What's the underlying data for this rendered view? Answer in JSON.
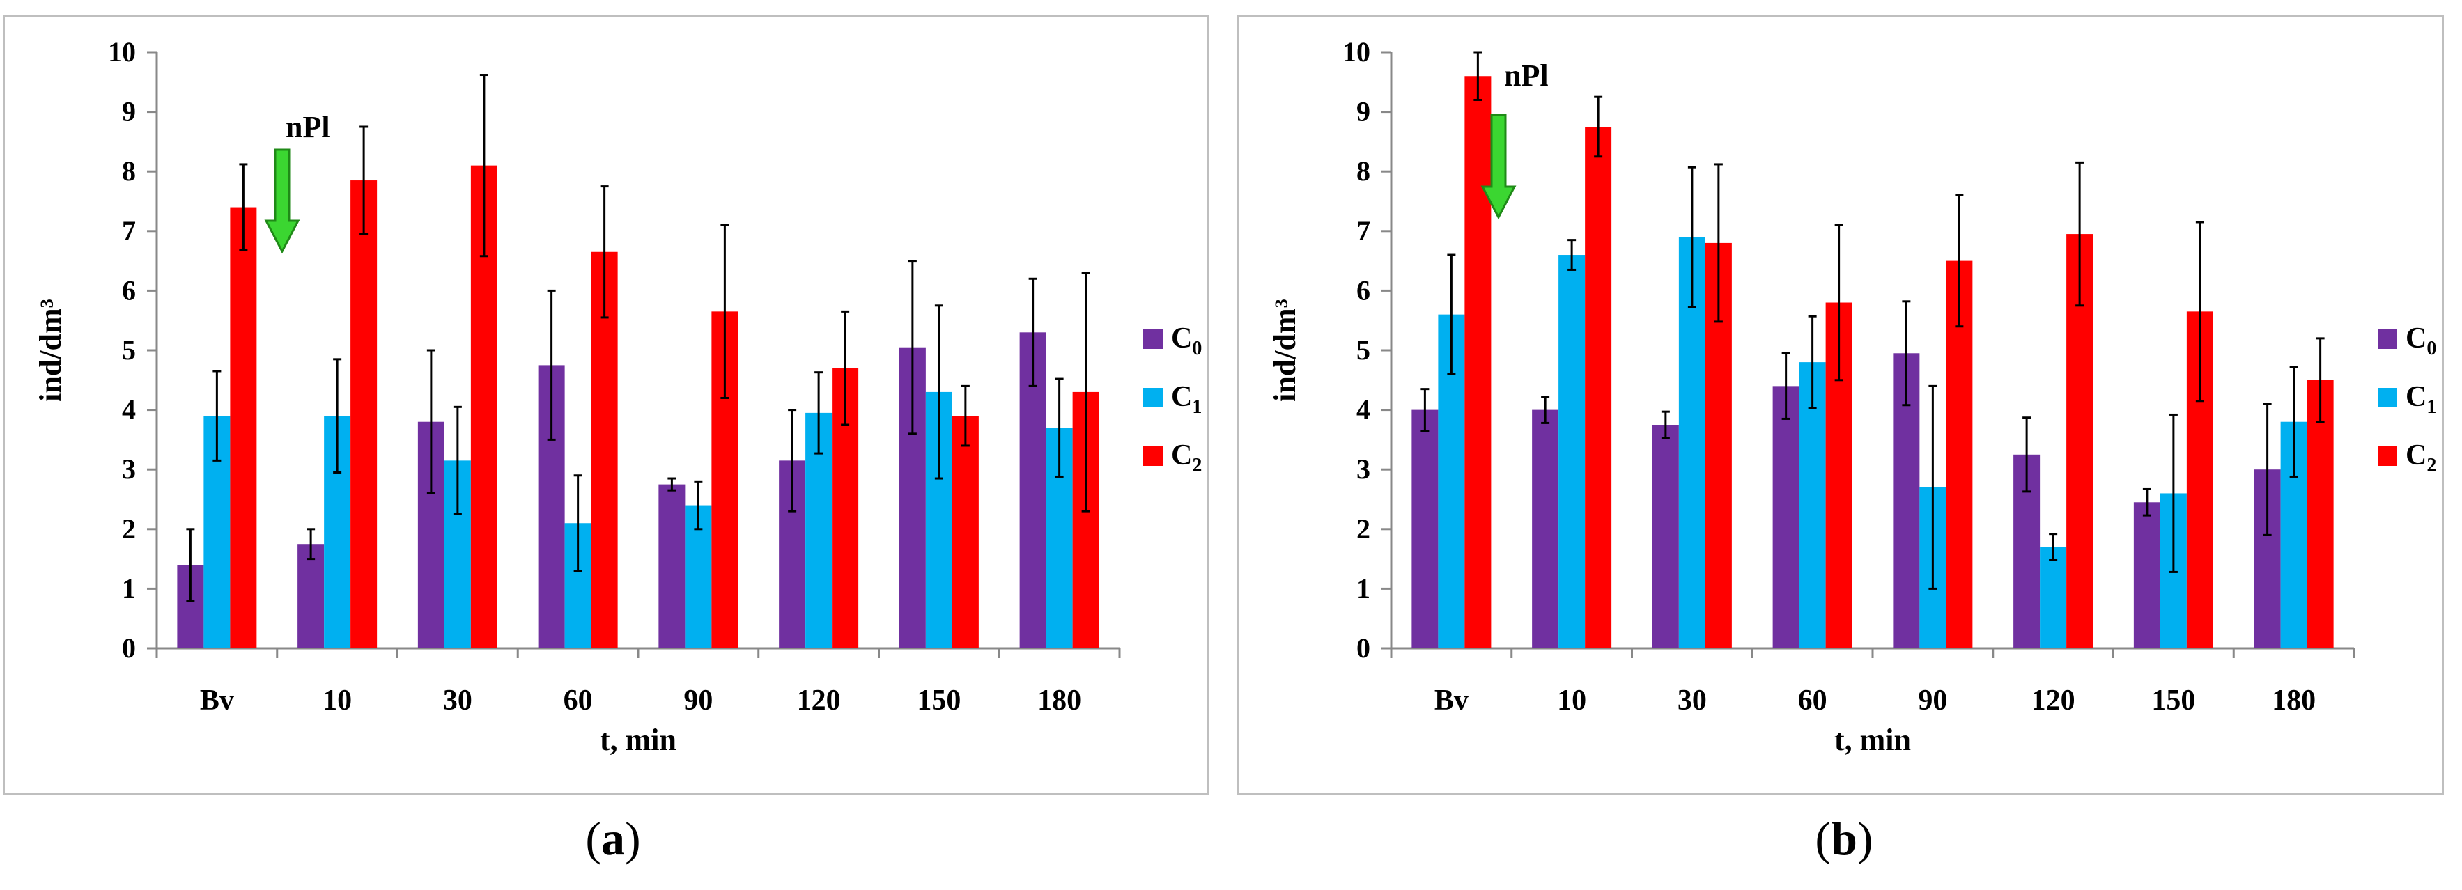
{
  "chart_data": [
    {
      "type": "bar",
      "title": "",
      "xlabel": "t, min",
      "ylabel": "ind/dm³",
      "ylim": [
        0,
        10
      ],
      "yticks": [
        "0",
        "1",
        "2",
        "3",
        "4",
        "5",
        "6",
        "7",
        "8",
        "9",
        "10"
      ],
      "categories": [
        "Bv",
        "10",
        "30",
        "60",
        "90",
        "120",
        "150",
        "180"
      ],
      "annotation": "nPl",
      "legend_position": "right",
      "series": [
        {
          "name": "C",
          "sub": "0",
          "color": "#7030a0",
          "values": [
            1.4,
            1.75,
            3.8,
            4.75,
            2.75,
            3.15,
            5.05,
            5.3
          ],
          "errors": [
            0.6,
            0.25,
            1.2,
            1.25,
            0.1,
            0.85,
            1.45,
            0.9
          ]
        },
        {
          "name": "C",
          "sub": "1",
          "color": "#00b0f0",
          "values": [
            3.9,
            3.9,
            3.15,
            2.1,
            2.4,
            3.95,
            4.3,
            3.7
          ],
          "errors": [
            0.75,
            0.95,
            0.9,
            0.8,
            0.4,
            0.68,
            1.45,
            0.82
          ]
        },
        {
          "name": "C",
          "sub": "2",
          "color": "#ff0000",
          "values": [
            7.4,
            7.85,
            8.1,
            6.65,
            5.65,
            4.7,
            3.9,
            4.3
          ],
          "errors": [
            0.72,
            0.9,
            1.52,
            1.1,
            1.45,
            0.95,
            0.5,
            2.0
          ]
        }
      ]
    },
    {
      "type": "bar",
      "title": "",
      "xlabel": "t, min",
      "ylabel": "ind/dm³",
      "ylim": [
        0,
        10
      ],
      "yticks": [
        "0",
        "1",
        "2",
        "3",
        "4",
        "5",
        "6",
        "7",
        "8",
        "9",
        "10"
      ],
      "categories": [
        "Bv",
        "10",
        "30",
        "60",
        "90",
        "120",
        "150",
        "180"
      ],
      "annotation": "nPl",
      "legend_position": "right",
      "series": [
        {
          "name": "C",
          "sub": "0",
          "color": "#7030a0",
          "values": [
            4.0,
            4.0,
            3.75,
            4.4,
            4.95,
            3.25,
            2.45,
            3.0
          ],
          "errors": [
            0.35,
            0.22,
            0.22,
            0.55,
            0.87,
            0.62,
            0.22,
            1.1
          ]
        },
        {
          "name": "C",
          "sub": "1",
          "color": "#00b0f0",
          "values": [
            5.6,
            6.6,
            6.9,
            4.8,
            2.7,
            1.7,
            2.6,
            3.8
          ],
          "errors": [
            1.0,
            0.25,
            1.17,
            0.77,
            1.7,
            0.22,
            1.32,
            0.92
          ]
        },
        {
          "name": "C",
          "sub": "2",
          "color": "#ff0000",
          "values": [
            9.6,
            8.75,
            6.8,
            5.8,
            6.5,
            6.95,
            5.65,
            4.5
          ],
          "errors": [
            0.4,
            0.5,
            1.32,
            1.3,
            1.1,
            1.2,
            1.5,
            0.7
          ]
        }
      ]
    }
  ],
  "captions": [
    {
      "open": "(",
      "letter": "a",
      "close": ")"
    },
    {
      "open": "(",
      "letter": "b",
      "close": ")"
    }
  ]
}
